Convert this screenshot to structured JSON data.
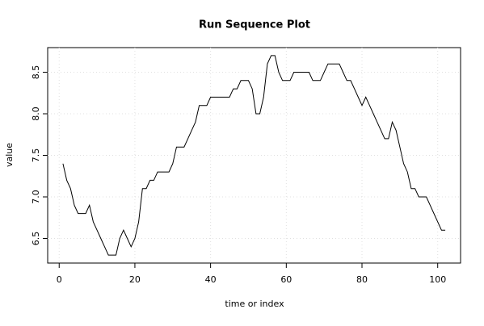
{
  "chart_data": {
    "type": "line",
    "title": "Run Sequence Plot",
    "x_label": "time or index",
    "y_label": "value",
    "x": [
      1,
      2,
      3,
      4,
      5,
      6,
      7,
      8,
      9,
      10,
      11,
      12,
      13,
      14,
      15,
      16,
      17,
      18,
      19,
      20,
      21,
      22,
      23,
      24,
      25,
      26,
      27,
      28,
      29,
      30,
      31,
      32,
      33,
      34,
      35,
      36,
      37,
      38,
      39,
      40,
      41,
      42,
      43,
      44,
      45,
      46,
      47,
      48,
      49,
      50,
      51,
      52,
      53,
      54,
      55,
      56,
      57,
      58,
      59,
      60,
      61,
      62,
      63,
      64,
      65,
      66,
      67,
      68,
      69,
      70,
      71,
      72,
      73,
      74,
      75,
      76,
      77,
      78,
      79,
      80,
      81,
      82,
      83,
      84,
      85,
      86,
      87,
      88,
      89,
      90,
      91,
      92,
      93,
      94,
      95,
      96,
      97,
      98,
      99,
      100,
      101,
      102
    ],
    "series": [
      {
        "color": "#000000",
        "values": [
          7.4,
          7.2,
          7.1,
          6.9,
          6.8,
          6.8,
          6.8,
          6.9,
          6.7,
          6.6,
          6.5,
          6.4,
          6.3,
          6.3,
          6.3,
          6.5,
          6.6,
          6.5,
          6.4,
          6.5,
          6.7,
          7.1,
          7.1,
          7.2,
          7.2,
          7.3,
          7.3,
          7.3,
          7.3,
          7.4,
          7.6,
          7.6,
          7.6,
          7.7,
          7.8,
          7.9,
          8.1,
          8.1,
          8.1,
          8.2,
          8.2,
          8.2,
          8.2,
          8.2,
          8.2,
          8.3,
          8.3,
          8.4,
          8.4,
          8.4,
          8.3,
          8.0,
          8.0,
          8.2,
          8.6,
          8.7,
          8.7,
          8.5,
          8.4,
          8.4,
          8.4,
          8.5,
          8.5,
          8.5,
          8.5,
          8.5,
          8.4,
          8.4,
          8.4,
          8.5,
          8.6,
          8.6,
          8.6,
          8.6,
          8.5,
          8.4,
          8.4,
          8.3,
          8.2,
          8.1,
          8.2,
          8.1,
          8.0,
          7.9,
          7.8,
          7.7,
          7.7,
          7.9,
          7.8,
          7.6,
          7.4,
          7.3,
          7.1,
          7.1,
          7.0,
          7.0,
          7.0,
          6.9,
          6.8,
          6.7,
          6.6,
          6.6
        ]
      }
    ],
    "xlim": [
      -3.04,
      106.04
    ],
    "xticks": [
      0,
      20,
      40,
      60,
      80,
      100
    ],
    "ylim": [
      6.204,
      8.796
    ],
    "yticks": [
      {
        "value": 6.5,
        "label": "6.5"
      },
      {
        "value": 7,
        "label": "7.0"
      },
      {
        "value": 7.5,
        "label": "7.5"
      },
      {
        "value": 8,
        "label": "8.0"
      },
      {
        "value": 8.5,
        "label": "8.5"
      }
    ],
    "grid": true
  }
}
